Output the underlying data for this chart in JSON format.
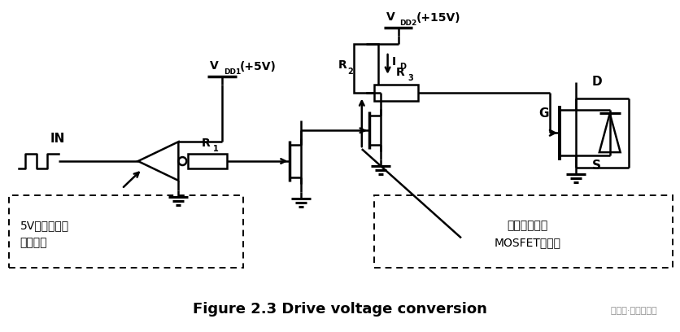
{
  "title": "Figure 2.3 Drive voltage conversion",
  "background_color": "#ffffff",
  "line_color": "#000000",
  "label_vdd2_v": "V",
  "label_vdd2_sub": "DD2",
  "label_vdd2_val": "(+15V)",
  "label_vdd1_v": "V",
  "label_vdd1_sub": "DD1",
  "label_vdd1_val": "(+5V)",
  "label_in": "IN",
  "label_r1_v": "R",
  "label_r1_sub": "1",
  "label_r2_v": "R",
  "label_r2_sub": "2",
  "label_r3_v": "R",
  "label_r3_sub": "3",
  "label_id_v": "I",
  "label_id_sub": "D",
  "label_g": "G",
  "label_d": "D",
  "label_s": "S",
  "label_box1": "5V数字逻辑或\n微控制器",
  "label_box2": "转换为能导通\nMOSFET的电压",
  "watermark": "  公众号·硬件攻城狮"
}
